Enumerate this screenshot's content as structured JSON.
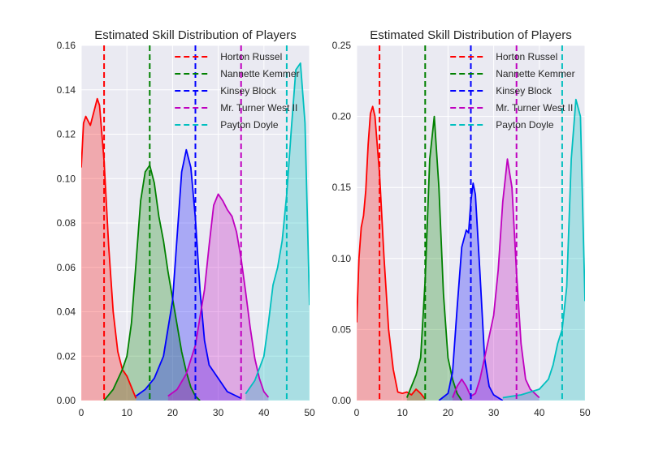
{
  "chart_data": [
    {
      "type": "area",
      "title": "Estimated Skill Distribution of Players",
      "xlabel": "",
      "ylabel": "",
      "xlim": [
        0,
        50
      ],
      "ylim": [
        0,
        0.16
      ],
      "xticks": [
        "0",
        "10",
        "20",
        "30",
        "40",
        "50"
      ],
      "yticks": [
        "0.00",
        "0.02",
        "0.04",
        "0.06",
        "0.08",
        "0.10",
        "0.12",
        "0.14",
        "0.16"
      ],
      "grid": true,
      "legend_position": "top-right",
      "series": [
        {
          "name": "Horton Russel",
          "color": "#ff0000",
          "vline": 5,
          "density": [
            [
              0,
              0.105
            ],
            [
              0.5,
              0.125
            ],
            [
              1,
              0.128
            ],
            [
              2,
              0.124
            ],
            [
              3,
              0.132
            ],
            [
              3.5,
              0.136
            ],
            [
              4,
              0.133
            ],
            [
              5,
              0.108
            ],
            [
              6,
              0.07
            ],
            [
              7,
              0.04
            ],
            [
              8,
              0.022
            ],
            [
              9,
              0.014
            ],
            [
              10,
              0.011
            ],
            [
              11,
              0.006
            ],
            [
              12,
              0.001
            ]
          ]
        },
        {
          "name": "Nannette Kemmer",
          "color": "#008000",
          "vline": 15,
          "density": [
            [
              5,
              0.0
            ],
            [
              7,
              0.005
            ],
            [
              9,
              0.014
            ],
            [
              10,
              0.02
            ],
            [
              11,
              0.035
            ],
            [
              12,
              0.062
            ],
            [
              13,
              0.09
            ],
            [
              14,
              0.103
            ],
            [
              15,
              0.106
            ],
            [
              16,
              0.098
            ],
            [
              17,
              0.083
            ],
            [
              18,
              0.072
            ],
            [
              19,
              0.058
            ],
            [
              20,
              0.046
            ],
            [
              21,
              0.034
            ],
            [
              22,
              0.022
            ],
            [
              23,
              0.013
            ],
            [
              24,
              0.006
            ],
            [
              25,
              0.002
            ],
            [
              26,
              0.0
            ]
          ]
        },
        {
          "name": "Kinsey Block",
          "color": "#0000ff",
          "vline": 25,
          "density": [
            [
              12,
              0.002
            ],
            [
              14,
              0.005
            ],
            [
              16,
              0.01
            ],
            [
              18,
              0.02
            ],
            [
              20,
              0.045
            ],
            [
              21,
              0.074
            ],
            [
              22,
              0.103
            ],
            [
              23,
              0.113
            ],
            [
              24,
              0.105
            ],
            [
              25,
              0.082
            ],
            [
              26,
              0.05
            ],
            [
              27,
              0.027
            ],
            [
              28,
              0.016
            ],
            [
              30,
              0.01
            ],
            [
              32,
              0.004
            ],
            [
              34,
              0.002
            ],
            [
              35,
              0.001
            ]
          ]
        },
        {
          "name": "Mr. Turner West II",
          "color": "#bf00bf",
          "vline": 35,
          "density": [
            [
              19,
              0.002
            ],
            [
              21,
              0.005
            ],
            [
              23,
              0.012
            ],
            [
              25,
              0.025
            ],
            [
              27,
              0.05
            ],
            [
              28,
              0.07
            ],
            [
              29,
              0.088
            ],
            [
              30,
              0.093
            ],
            [
              31,
              0.09
            ],
            [
              32,
              0.086
            ],
            [
              33,
              0.083
            ],
            [
              34,
              0.076
            ],
            [
              35,
              0.064
            ],
            [
              36,
              0.049
            ],
            [
              37,
              0.033
            ],
            [
              38,
              0.019
            ],
            [
              39,
              0.01
            ],
            [
              40,
              0.004
            ],
            [
              41,
              0.0015
            ]
          ]
        },
        {
          "name": "Payton Doyle",
          "color": "#00bfbf",
          "vline": 45,
          "density": [
            [
              36,
              0.003
            ],
            [
              38,
              0.009
            ],
            [
              40,
              0.02
            ],
            [
              41,
              0.035
            ],
            [
              42,
              0.052
            ],
            [
              43,
              0.06
            ],
            [
              44,
              0.072
            ],
            [
              45,
              0.093
            ],
            [
              46,
              0.122
            ],
            [
              47,
              0.149
            ],
            [
              48,
              0.152
            ],
            [
              49,
              0.125
            ],
            [
              50,
              0.043
            ]
          ]
        }
      ]
    },
    {
      "type": "area",
      "title": "Estimated Skill Distribution of Players",
      "xlabel": "",
      "ylabel": "",
      "xlim": [
        0,
        50
      ],
      "ylim": [
        0,
        0.25
      ],
      "xticks": [
        "0",
        "10",
        "20",
        "30",
        "40",
        "50"
      ],
      "yticks": [
        "0.00",
        "0.05",
        "0.10",
        "0.15",
        "0.20",
        "0.25"
      ],
      "grid": true,
      "legend_position": "top-right",
      "series": [
        {
          "name": "Horton Russel",
          "color": "#ff0000",
          "vline": 5,
          "density": [
            [
              0,
              0.055
            ],
            [
              0.5,
              0.1
            ],
            [
              1,
              0.122
            ],
            [
              1.5,
              0.13
            ],
            [
              2,
              0.148
            ],
            [
              2.5,
              0.18
            ],
            [
              3,
              0.202
            ],
            [
              3.5,
              0.207
            ],
            [
              4,
              0.2
            ],
            [
              5,
              0.16
            ],
            [
              6,
              0.1
            ],
            [
              7,
              0.05
            ],
            [
              8,
              0.022
            ],
            [
              9,
              0.006
            ],
            [
              10,
              0.005
            ],
            [
              11,
              0.006
            ],
            [
              12,
              0.004
            ],
            [
              13,
              0.008
            ],
            [
              14,
              0.005
            ],
            [
              15,
              0.001
            ]
          ]
        },
        {
          "name": "Nannette Kemmer",
          "color": "#008000",
          "vline": 15,
          "density": [
            [
              11,
              0.002
            ],
            [
              12,
              0.01
            ],
            [
              13,
              0.018
            ],
            [
              14,
              0.03
            ],
            [
              15,
              0.085
            ],
            [
              16,
              0.17
            ],
            [
              17,
              0.2
            ],
            [
              18,
              0.15
            ],
            [
              19,
              0.075
            ],
            [
              20,
              0.03
            ],
            [
              21,
              0.015
            ],
            [
              22,
              0.005
            ],
            [
              23,
              0.0
            ]
          ]
        },
        {
          "name": "Kinsey Block",
          "color": "#0000ff",
          "vline": 25,
          "density": [
            [
              18,
              0.0
            ],
            [
              20,
              0.005
            ],
            [
              21,
              0.02
            ],
            [
              22,
              0.065
            ],
            [
              23,
              0.108
            ],
            [
              24,
              0.12
            ],
            [
              24.5,
              0.118
            ],
            [
              25,
              0.14
            ],
            [
              25.5,
              0.153
            ],
            [
              26,
              0.145
            ],
            [
              27,
              0.09
            ],
            [
              28,
              0.03
            ],
            [
              29,
              0.01
            ],
            [
              30,
              0.004
            ],
            [
              31,
              0.002
            ],
            [
              32,
              0.0
            ]
          ]
        },
        {
          "name": "Mr. Turner West II",
          "color": "#bf00bf",
          "vline": 35,
          "density": [
            [
              21,
              0.002
            ],
            [
              22,
              0.01
            ],
            [
              23,
              0.015
            ],
            [
              24,
              0.01
            ],
            [
              25,
              0.003
            ],
            [
              26,
              0.005
            ],
            [
              27,
              0.015
            ],
            [
              28,
              0.03
            ],
            [
              30,
              0.06
            ],
            [
              31,
              0.092
            ],
            [
              32,
              0.14
            ],
            [
              33,
              0.17
            ],
            [
              34,
              0.15
            ],
            [
              35,
              0.09
            ],
            [
              36,
              0.04
            ],
            [
              37,
              0.015
            ],
            [
              38,
              0.008
            ],
            [
              39,
              0.005
            ],
            [
              40,
              0.002
            ]
          ]
        },
        {
          "name": "Payton Doyle",
          "color": "#00bfbf",
          "vline": 45,
          "density": [
            [
              32,
              0.002
            ],
            [
              34,
              0.003
            ],
            [
              36,
              0.004
            ],
            [
              38,
              0.006
            ],
            [
              40,
              0.008
            ],
            [
              42,
              0.015
            ],
            [
              43,
              0.025
            ],
            [
              44,
              0.04
            ],
            [
              45,
              0.05
            ],
            [
              46,
              0.08
            ],
            [
              47,
              0.17
            ],
            [
              48,
              0.212
            ],
            [
              49,
              0.2
            ],
            [
              50,
              0.07
            ]
          ]
        }
      ]
    }
  ]
}
